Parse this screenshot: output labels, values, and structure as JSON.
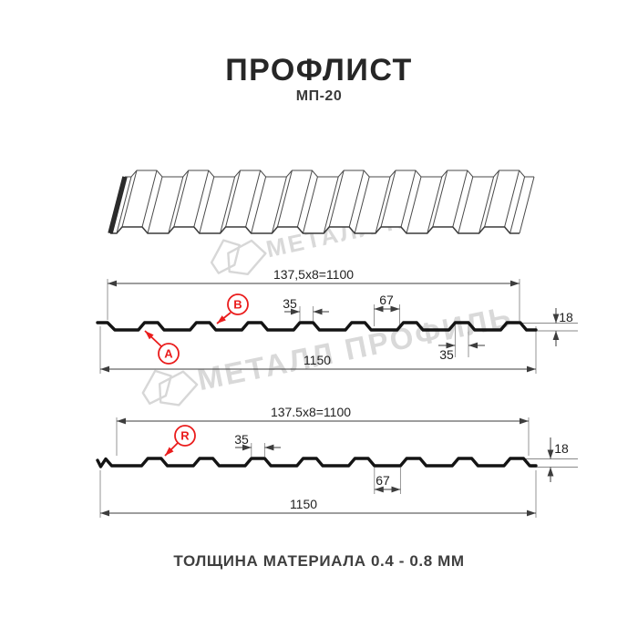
{
  "header": {
    "title": "ПРОФЛИСТ",
    "subtitle": "МП-20"
  },
  "footer": {
    "thickness_note": "ТОЛЩИНА МАТЕРИАЛА 0.4 - 0.8 ММ"
  },
  "watermark": {
    "text": "МЕТАЛЛ ПРОФИЛЬ"
  },
  "colors": {
    "accent_red": "#ea1c1c",
    "profile_line": "#141414",
    "dim_line": "#3d3d3d",
    "watermark_gray": "#d9d9d9"
  },
  "section_a": {
    "label_a": "A",
    "label_b": "B",
    "dim_module": "137,5x8=1100",
    "dim_rib_top": "35",
    "dim_rib_opening": "67",
    "dim_height": "18",
    "dim_rib_top_lower": "35",
    "dim_overall": "1150"
  },
  "section_r": {
    "label_r": "R",
    "dim_module": "137.5x8=1100",
    "dim_rib_top": "35",
    "dim_rib_opening": "67",
    "dim_height": "18",
    "dim_overall": "1150"
  }
}
